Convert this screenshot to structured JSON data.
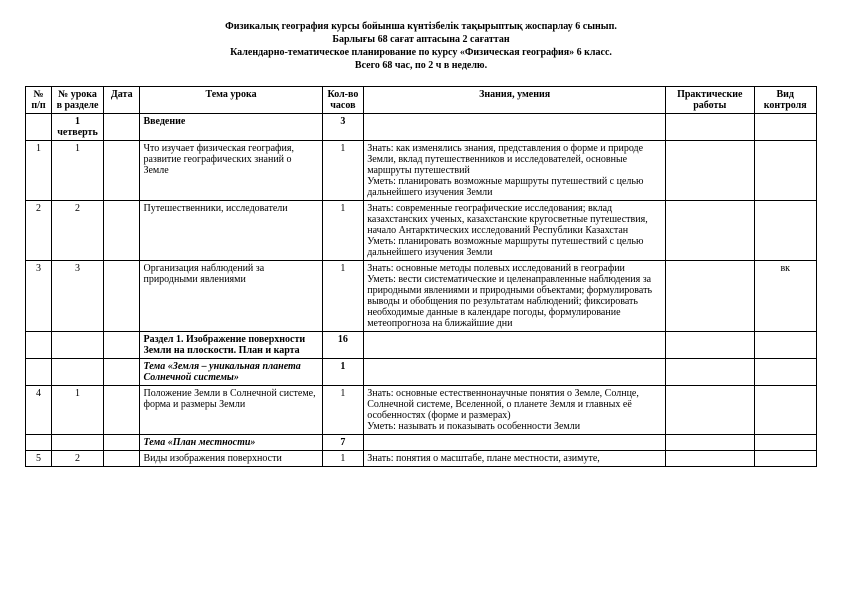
{
  "header": {
    "line1": "Физикалық география курсы бойынша күнтізбелік тақырыптық жоспарлау 6 сынып.",
    "line2": "Барлығы 68 сағат аптасына 2 сағаттан",
    "line3": "Календарно-тематическое планирование по курсу «Физическая география» 6 класс.",
    "line4": "Всего 68 час, по 2 ч в неделю."
  },
  "columns": {
    "npp": "№ п/п",
    "lesson": "№ урока в разделе",
    "date": "Дата",
    "topic": "Тема урока",
    "hours": "Кол-во часов",
    "know": "Знания, умения",
    "pract": "Практические работы",
    "ctrl": "Вид контроля"
  },
  "rows": [
    {
      "lesson": "1 четверть",
      "topic": "Введение",
      "hours": "3",
      "bold": true
    },
    {
      "npp": "1",
      "lesson": "1",
      "topic": "Что изучает физическая география, развитие географических знаний о Земле",
      "hours": "1",
      "know": "Знать: как изменялись знания, представления о форме и природе Земли, вклад путешественников и исследователей, основные маршруты путешествий\nУметь: планировать возможные маршруты путешествий с целью дальнейшего изучения Земли"
    },
    {
      "npp": "2",
      "lesson": "2",
      "topic": "Путешественники, исследователи",
      "hours": "1",
      "know": "Знать: современные географические исследования; вклад казахстанских ученых, казахстанские кругосветные путешествия, начало Антарктических исследований Республики Казахстан\nУметь: планировать возможные маршруты путешествий с целью дальнейшего изучения Земли"
    },
    {
      "npp": "3",
      "lesson": "3",
      "topic": "Организация наблюдений за природными явлениями",
      "hours": "1",
      "know": "Знать: основные методы полевых исследований в географии\nУметь: вести систематические и целенаправленные наблюдения за природными явлениями и природными объектами; формулировать выводы и обобщения по результатам наблюдений; фиксировать необходимые данные в календаре погоды, формулирование метеопрогноза на ближайшие дни",
      "ctrl": "вк"
    },
    {
      "topic": "Раздел 1. Изображение поверхности Земли на плоскости. План и карта",
      "hours": "16",
      "bold": true
    },
    {
      "topic": "Тема «Земля – уникальная планета Солнечной системы»",
      "hours": "1",
      "bold": true,
      "italic": true
    },
    {
      "npp": "4",
      "lesson": "1",
      "topic": "Положение Земли в Солнечной системе, форма и размеры Земли",
      "hours": "1",
      "know": "Знать: основные естественнонаучные понятия о Земле, Солнце, Солнечной системе, Вселенной, о планете Земля и главных её особенностях (форме и размерах)\nУметь: называть и показывать особенности Земли"
    },
    {
      "topic": "Тема «План местности»",
      "hours": "7",
      "bold": true,
      "italic": true
    },
    {
      "npp": "5",
      "lesson": "2",
      "topic": "Виды изображения поверхности",
      "hours": "1",
      "know": "Знать: понятия о масштабе, плане местности, азимуте,"
    }
  ]
}
